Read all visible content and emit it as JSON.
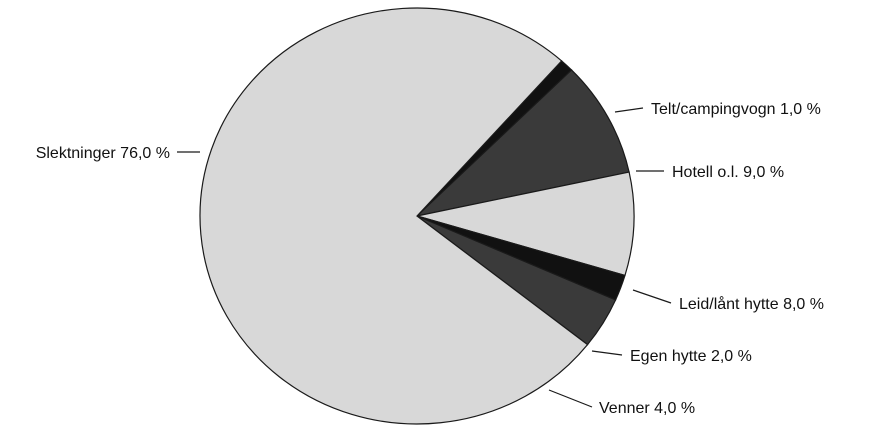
{
  "chart_data": {
    "type": "pie",
    "title": "",
    "slices": [
      {
        "label": "Telt/campingvogn",
        "value": 1.0,
        "display": "1,0 %",
        "color": "#111111"
      },
      {
        "label": "Hotell o.l.",
        "value": 9.0,
        "display": "9,0 %",
        "color": "#3a3a3a"
      },
      {
        "label": "Leid/lånt hytte",
        "value": 8.0,
        "display": "8,0 %",
        "color": "#d8d8d8"
      },
      {
        "label": "Egen hytte",
        "value": 2.0,
        "display": "2,0 %",
        "color": "#111111"
      },
      {
        "label": "Venner",
        "value": 4.0,
        "display": "4,0 %",
        "color": "#3a3a3a"
      },
      {
        "label": "Slektninger",
        "value": 76.0,
        "display": "76,0 %",
        "color": "#d8d8d8"
      }
    ],
    "legend": "none",
    "labels": "outside with leader lines"
  }
}
